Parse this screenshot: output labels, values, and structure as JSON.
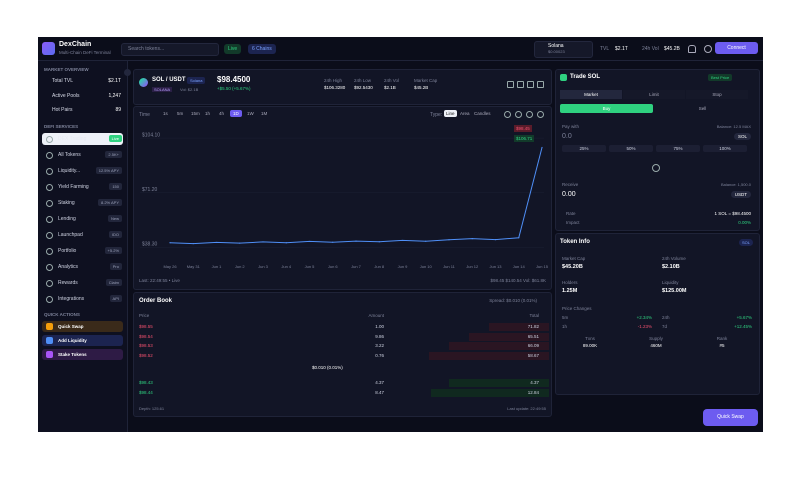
{
  "header": {
    "brand": "DexChain",
    "tagline": "Multi-Chain DeFi Terminal",
    "search": "Search tokens...",
    "live": "Live",
    "chains": "6 Chains",
    "network": "Solana",
    "network_sub": "$0.00023",
    "tvl_label": "TVL",
    "tvl": "$2.1T",
    "volume_label": "24h Vol",
    "volume": "$45.2B",
    "connect": "Connect"
  },
  "sidebar": {
    "overview_title": "MARKET OVERVIEW",
    "overview": [
      {
        "label": "Total TVL",
        "value": "$2.1T"
      },
      {
        "label": "Active Pools",
        "value": "1,247"
      },
      {
        "label": "Hot Pairs",
        "value": "89"
      }
    ],
    "services_title": "DEFI SERVICES",
    "services": [
      {
        "label": "DEX Trading",
        "badge": "Live"
      },
      {
        "label": "All Tokens",
        "badge": "2.5K+"
      },
      {
        "label": "Liquidity...",
        "badge": "12.5% APY"
      },
      {
        "label": "Yield Farming",
        "badge": "150"
      },
      {
        "label": "Staking",
        "badge": "8.2% APY"
      },
      {
        "label": "Lending",
        "badge": "New"
      },
      {
        "label": "Launchpad",
        "badge": "IDO"
      },
      {
        "label": "Portfolio",
        "badge": "+5.2%"
      },
      {
        "label": "Analytics",
        "badge": "Pro"
      },
      {
        "label": "Rewards",
        "badge": "Claim"
      },
      {
        "label": "Integrations",
        "badge": "API"
      }
    ],
    "actions_title": "QUICK ACTIONS",
    "actions": [
      "Quick Swap",
      "Add Liquidity",
      "Stake Tokens"
    ]
  },
  "pair": {
    "symbol": "SOL / USDT",
    "chain": "Solana",
    "network": "SOLANA",
    "vol": "Vol: $2.1B",
    "price": "$98.4500",
    "change": "+$5.50 (+5.67%)",
    "stats": [
      {
        "label": "24h High",
        "value": "$106.3280"
      },
      {
        "label": "24h Low",
        "value": "$92.5430"
      },
      {
        "label": "24h Vol",
        "value": "$2.1B"
      },
      {
        "label": "Market Cap",
        "value": "$45.2B"
      }
    ]
  },
  "toolbar": {
    "time_label": "Time",
    "intervals": [
      "1s",
      "5m",
      "15m",
      "1h",
      "4h",
      "1D",
      "1W",
      "1M"
    ],
    "active_interval": "1D",
    "type_label": "Type:",
    "types": [
      "Line",
      "Area",
      "Candles"
    ],
    "active_type": "Line"
  },
  "chart_data": {
    "type": "line",
    "categories": [
      "May 26",
      "May 31",
      "Jun 1",
      "Jun 2",
      "Jun 3",
      "Jun 4",
      "Jun 5",
      "Jun 6",
      "Jun 7",
      "Jun 8",
      "Jun 9",
      "Jun 10",
      "Jun 11",
      "Jun 12",
      "Jun 13",
      "Jun 14",
      "Jun 15"
    ],
    "values": [
      41,
      40.5,
      41.2,
      40.8,
      41.5,
      41,
      41.8,
      41.3,
      42,
      41.6,
      42.4,
      41.9,
      42.8,
      43.5,
      42.9,
      44,
      98.45
    ],
    "color": "#4f8ff7",
    "ylim": [
      30,
      112
    ],
    "yticks": [
      {
        "value": 38.3,
        "label": "$38.30"
      },
      {
        "value": 71.2,
        "label": "$71.20"
      },
      {
        "value": 104.1,
        "label": "$104.10"
      }
    ],
    "grid": true,
    "last_price": "$98.45",
    "high_price": "$106.71",
    "footer_left": "Last: 22:49:55 • Live",
    "footer_right": "$98.45  $140.54  Vol: $61.8K"
  },
  "order_book": {
    "title": "Order Book",
    "spread": "Spread: $0.010 (0.01%)",
    "headers": [
      "Price",
      "Amount",
      "Total"
    ],
    "asks": [
      [
        "$98.55",
        "1.00",
        "71.82"
      ],
      [
        "$98.54",
        "9.86",
        "65.51"
      ],
      [
        "$98.53",
        "3.22",
        "66.09"
      ],
      [
        "$98.52",
        "0.76",
        "58.67"
      ]
    ],
    "mid": "$0.010 (0.01%)",
    "bids": [
      [
        "$98.43",
        "4.37",
        "4.37"
      ],
      [
        "$98.44",
        "8.47",
        "12.84"
      ]
    ],
    "depth": "Depth: 125.61",
    "updated": "Last update: 22:49:55"
  },
  "trade": {
    "title": "Trade SOL",
    "best": "Best Price",
    "tabs": [
      "Market",
      "Limit",
      "Stop"
    ],
    "buy": "Buy",
    "sell": "Sell",
    "pay_label": "Pay with",
    "pay_balance": "Balance: 12.5 MAX",
    "pay_amount": "0.0",
    "pay_token": "SOL",
    "percents": [
      "25%",
      "50%",
      "75%",
      "100%"
    ],
    "receive_label": "Receive",
    "receive_balance": "Balance: 1,500.0",
    "receive_amount": "0.00",
    "receive_token": "USDT",
    "rate_label": "Rate",
    "rate": "1 SOL = $98.4500",
    "impact_label": "Impact",
    "impact": "0.00%"
  },
  "token_info": {
    "title": "Token Info",
    "token": "SOL",
    "stats": [
      {
        "label": "Market Cap",
        "value": "$45.20B"
      },
      {
        "label": "24h Volume",
        "value": "$2.10B"
      },
      {
        "label": "Holders",
        "value": "1.25M"
      },
      {
        "label": "Liquidity",
        "value": "$125.00M"
      }
    ],
    "changes_title": "Price Changes",
    "changes": [
      {
        "label": "5m",
        "value": "+2.34%"
      },
      {
        "label": "24h",
        "value": "+5.67%"
      },
      {
        "label": "1h",
        "value": "-1.23%"
      },
      {
        "label": "7d",
        "value": "+12.45%"
      }
    ],
    "bottom": [
      {
        "label": "Txns",
        "value": "89.00K"
      },
      {
        "label": "Supply",
        "value": "460M"
      },
      {
        "label": "Rank",
        "value": "#5"
      }
    ]
  },
  "quick_swap": "Quick Swap"
}
